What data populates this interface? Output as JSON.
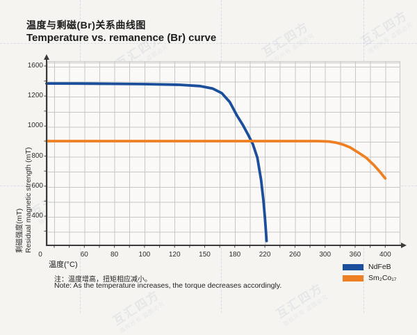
{
  "header": {
    "title_zh": "温度与剩磁(Br)关系曲线图",
    "title_en": "Temperature vs. remanence (Br) curve"
  },
  "watermark": {
    "brand": "互汇四方",
    "tagline": "版权所有 盗图必究"
  },
  "chart_data": {
    "type": "line",
    "title": "Temperature vs. remanence (Br) curve",
    "xlabel": "温度(°C)",
    "ylabel_zh": "剩磁强度(mT)",
    "ylabel_en": "Residual magnetic strength (mT)",
    "x_ticks": [
      0,
      60,
      80,
      100,
      120,
      150,
      180,
      220,
      260,
      300,
      360,
      400
    ],
    "y_ticks": [
      1600,
      1200,
      1000,
      800,
      600,
      400
    ],
    "origin_label": "0",
    "xlim": [
      0,
      400
    ],
    "ylim": [
      0,
      1600
    ],
    "grid": true,
    "legend_position": "bottom-right",
    "series": [
      {
        "name": "NdFeB",
        "color": "#1b4e9b",
        "points": [
          [
            0,
            1368
          ],
          [
            50,
            1367
          ],
          [
            80,
            1363
          ],
          [
            100,
            1359
          ],
          [
            125,
            1350
          ],
          [
            145,
            1333
          ],
          [
            158,
            1300
          ],
          [
            167,
            1240
          ],
          [
            175,
            1160
          ],
          [
            183,
            1070
          ],
          [
            191,
            1005
          ],
          [
            198,
            940
          ],
          [
            204,
            880
          ],
          [
            210,
            790
          ],
          [
            215,
            640
          ],
          [
            218,
            510
          ],
          [
            220,
            390
          ],
          [
            221.5,
            180
          ],
          [
            222.3,
            60
          ]
        ]
      },
      {
        "name": "Sm₂Co₁₇",
        "color": "#ee7f22",
        "points": [
          [
            0,
            900
          ],
          [
            100,
            900
          ],
          [
            200,
            900
          ],
          [
            290,
            900
          ],
          [
            308,
            897
          ],
          [
            322,
            890
          ],
          [
            336,
            877
          ],
          [
            350,
            858
          ],
          [
            363,
            828
          ],
          [
            375,
            788
          ],
          [
            385,
            740
          ],
          [
            393,
            695
          ],
          [
            400,
            652
          ]
        ]
      }
    ]
  },
  "notes": {
    "zh": "注：温度增高，扭矩相应减小。",
    "en": "Note: As the temperature increases, the torque decreases accordingly."
  }
}
